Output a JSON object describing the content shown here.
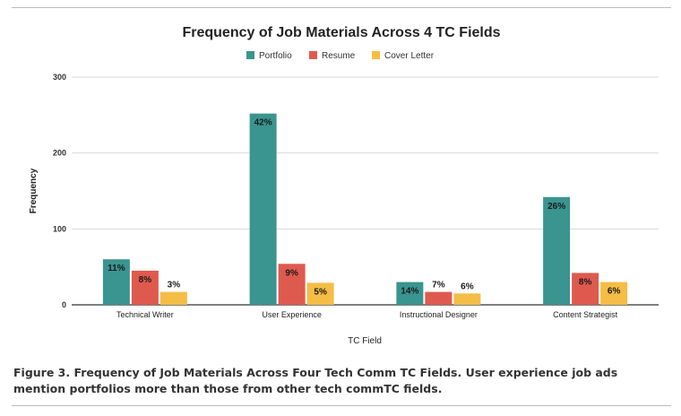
{
  "chart_data": {
    "type": "bar",
    "title": "Frequency of Job Materials Across 4 TC Fields",
    "xlabel": "TC Field",
    "ylabel": "Frequency",
    "ylim": [
      0,
      300
    ],
    "yticks": [
      0,
      100,
      200,
      300
    ],
    "grid": true,
    "legend_position": "top",
    "categories": [
      "Technical Writer",
      "User Experience",
      "Instructional Designer",
      "Content Strategist"
    ],
    "series": [
      {
        "name": "Portfolio",
        "color": "#3a9490",
        "values": [
          60,
          252,
          30,
          142
        ],
        "labels": [
          "11%",
          "42%",
          "14%",
          "26%"
        ]
      },
      {
        "name": "Resume",
        "color": "#df5a4e",
        "values": [
          45,
          54,
          17,
          42
        ],
        "labels": [
          "8%",
          "9%",
          "7%",
          "8%"
        ]
      },
      {
        "name": "Cover Letter",
        "color": "#f4bd45",
        "values": [
          17,
          29,
          15,
          30
        ],
        "labels": [
          "3%",
          "5%",
          "6%",
          "6%"
        ]
      }
    ]
  },
  "caption": "Figure 3. Frequency of Job Materials Across Four Tech Comm TC Fields. User experience job ads mention portfolios more than those from other tech commTC fields."
}
